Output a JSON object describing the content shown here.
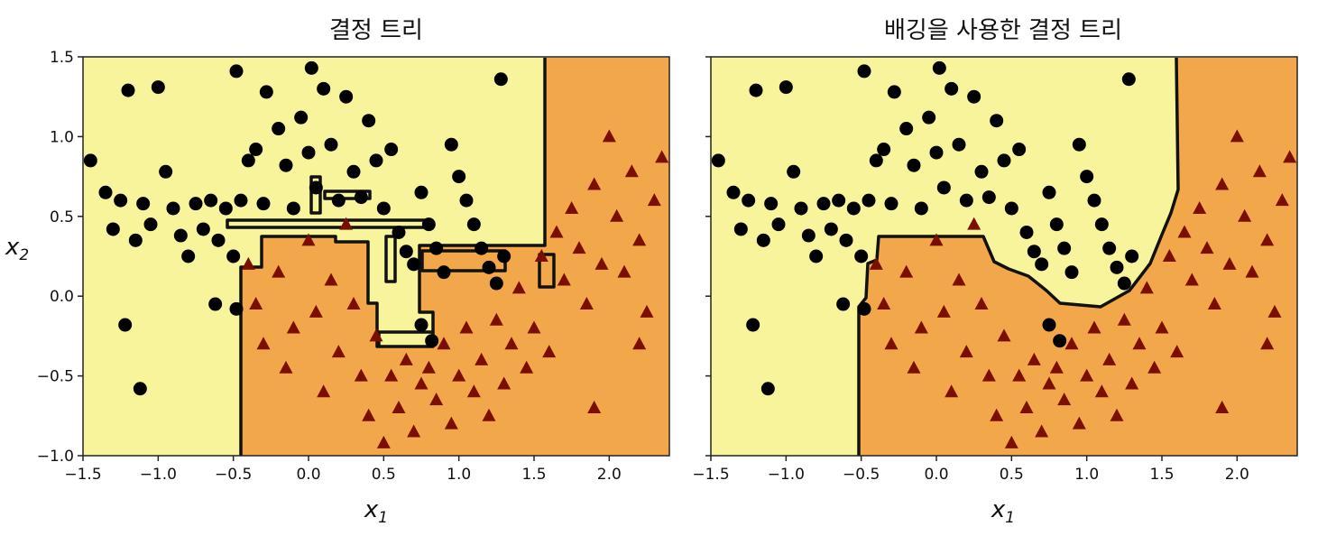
{
  "colors": {
    "class0_region": "#f7f49c",
    "class1_region": "#f1a74a",
    "class0_marker": "#000000",
    "class1_marker": "#7a0f00",
    "boundary": "#111111"
  },
  "chart_data": [
    {
      "type": "scatter",
      "title": "결정 트리",
      "xlabel": "x1",
      "ylabel": "x2",
      "xlim": [
        -1.5,
        2.4
      ],
      "ylim": [
        -1.0,
        1.5
      ],
      "x_ticks": [
        "−1.5",
        "−1.0",
        "−0.5",
        "0.0",
        "0.5",
        "1.0",
        "1.5",
        "2.0"
      ],
      "y_ticks": [
        "−1.0",
        "−0.5",
        "0.0",
        "0.5",
        "1.0",
        "1.5"
      ],
      "series": [
        {
          "marker": "circle",
          "color": "#000000",
          "points": [
            [
              -1.45,
              0.85
            ],
            [
              -1.35,
              0.65
            ],
            [
              -1.3,
              0.42
            ],
            [
              -1.25,
              0.6
            ],
            [
              -1.2,
              1.29
            ],
            [
              -1.15,
              0.35
            ],
            [
              -1.1,
              0.58
            ],
            [
              -1.05,
              0.45
            ],
            [
              -1.0,
              1.31
            ],
            [
              -0.95,
              0.78
            ],
            [
              -0.9,
              0.55
            ],
            [
              -0.85,
              0.38
            ],
            [
              -0.8,
              0.25
            ],
            [
              -0.75,
              0.58
            ],
            [
              -0.7,
              0.42
            ],
            [
              -0.65,
              0.6
            ],
            [
              -0.6,
              0.35
            ],
            [
              -0.55,
              0.55
            ],
            [
              -0.5,
              0.25
            ],
            [
              -0.48,
              1.41
            ],
            [
              -0.45,
              0.6
            ],
            [
              -0.4,
              0.85
            ],
            [
              -0.35,
              0.92
            ],
            [
              -0.3,
              0.58
            ],
            [
              -0.28,
              1.28
            ],
            [
              -0.2,
              1.05
            ],
            [
              -0.15,
              0.82
            ],
            [
              -0.1,
              0.55
            ],
            [
              -0.05,
              1.12
            ],
            [
              0.0,
              0.9
            ],
            [
              0.02,
              1.43
            ],
            [
              0.05,
              0.68
            ],
            [
              0.1,
              1.3
            ],
            [
              0.15,
              0.95
            ],
            [
              0.2,
              0.6
            ],
            [
              0.25,
              1.25
            ],
            [
              0.3,
              0.78
            ],
            [
              0.35,
              0.62
            ],
            [
              0.4,
              1.1
            ],
            [
              0.45,
              0.85
            ],
            [
              0.5,
              0.55
            ],
            [
              0.55,
              0.92
            ],
            [
              0.6,
              0.4
            ],
            [
              0.65,
              0.28
            ],
            [
              0.7,
              0.2
            ],
            [
              0.75,
              0.65
            ],
            [
              0.8,
              0.45
            ],
            [
              0.85,
              0.3
            ],
            [
              0.9,
              0.15
            ],
            [
              0.95,
              0.95
            ],
            [
              1.0,
              0.75
            ],
            [
              1.05,
              0.6
            ],
            [
              1.1,
              0.45
            ],
            [
              1.15,
              0.3
            ],
            [
              1.2,
              0.18
            ],
            [
              1.25,
              0.08
            ],
            [
              1.28,
              1.36
            ],
            [
              1.3,
              0.25
            ],
            [
              -1.12,
              -0.58
            ],
            [
              -0.62,
              -0.05
            ],
            [
              -0.48,
              -0.08
            ],
            [
              -1.22,
              -0.18
            ],
            [
              0.75,
              -0.18
            ],
            [
              0.82,
              -0.28
            ]
          ]
        },
        {
          "marker": "triangle",
          "color": "#7a0f00",
          "points": [
            [
              -0.4,
              0.2
            ],
            [
              -0.35,
              -0.05
            ],
            [
              -0.3,
              -0.3
            ],
            [
              -0.2,
              0.15
            ],
            [
              -0.15,
              -0.45
            ],
            [
              -0.1,
              -0.2
            ],
            [
              0.0,
              0.35
            ],
            [
              0.05,
              -0.1
            ],
            [
              0.1,
              -0.6
            ],
            [
              0.15,
              0.1
            ],
            [
              0.2,
              -0.35
            ],
            [
              0.25,
              0.45
            ],
            [
              0.3,
              -0.05
            ],
            [
              0.35,
              -0.5
            ],
            [
              0.4,
              -0.75
            ],
            [
              0.45,
              -0.25
            ],
            [
              0.5,
              -0.92
            ],
            [
              0.55,
              -0.5
            ],
            [
              0.6,
              -0.7
            ],
            [
              0.65,
              -0.4
            ],
            [
              0.7,
              -0.85
            ],
            [
              0.75,
              -0.55
            ],
            [
              0.8,
              -0.45
            ],
            [
              0.85,
              -0.65
            ],
            [
              0.9,
              -0.3
            ],
            [
              0.95,
              -0.8
            ],
            [
              1.0,
              -0.5
            ],
            [
              1.05,
              -0.2
            ],
            [
              1.1,
              -0.6
            ],
            [
              1.15,
              -0.4
            ],
            [
              1.2,
              -0.75
            ],
            [
              1.25,
              -0.15
            ],
            [
              1.3,
              -0.55
            ],
            [
              1.35,
              -0.3
            ],
            [
              1.4,
              0.05
            ],
            [
              1.45,
              -0.45
            ],
            [
              1.5,
              -0.2
            ],
            [
              1.55,
              0.25
            ],
            [
              1.6,
              -0.35
            ],
            [
              1.65,
              0.4
            ],
            [
              1.7,
              0.1
            ],
            [
              1.75,
              0.55
            ],
            [
              1.8,
              0.3
            ],
            [
              1.85,
              -0.05
            ],
            [
              1.9,
              0.7
            ],
            [
              1.95,
              0.2
            ],
            [
              2.0,
              1.0
            ],
            [
              2.05,
              0.5
            ],
            [
              2.1,
              0.15
            ],
            [
              2.15,
              0.78
            ],
            [
              2.2,
              0.35
            ],
            [
              2.25,
              -0.1
            ],
            [
              2.3,
              0.6
            ],
            [
              2.35,
              0.87
            ],
            [
              2.2,
              -0.3
            ],
            [
              1.9,
              -0.7
            ]
          ]
        }
      ]
    },
    {
      "type": "scatter",
      "title": "배깅을 사용한 결정 트리",
      "xlabel": "x1",
      "ylabel": "",
      "xlim": [
        -1.5,
        2.4
      ],
      "ylim": [
        -1.0,
        1.5
      ],
      "x_ticks": [
        "−1.5",
        "−1.0",
        "−0.5",
        "0.0",
        "0.5",
        "1.0",
        "1.5",
        "2.0"
      ],
      "y_ticks": [],
      "series": [
        {
          "marker": "circle",
          "color": "#000000",
          "points": [
            [
              -1.45,
              0.85
            ],
            [
              -1.35,
              0.65
            ],
            [
              -1.3,
              0.42
            ],
            [
              -1.25,
              0.6
            ],
            [
              -1.2,
              1.29
            ],
            [
              -1.15,
              0.35
            ],
            [
              -1.1,
              0.58
            ],
            [
              -1.05,
              0.45
            ],
            [
              -1.0,
              1.31
            ],
            [
              -0.95,
              0.78
            ],
            [
              -0.9,
              0.55
            ],
            [
              -0.85,
              0.38
            ],
            [
              -0.8,
              0.25
            ],
            [
              -0.75,
              0.58
            ],
            [
              -0.7,
              0.42
            ],
            [
              -0.65,
              0.6
            ],
            [
              -0.6,
              0.35
            ],
            [
              -0.55,
              0.55
            ],
            [
              -0.5,
              0.25
            ],
            [
              -0.48,
              1.41
            ],
            [
              -0.45,
              0.6
            ],
            [
              -0.4,
              0.85
            ],
            [
              -0.35,
              0.92
            ],
            [
              -0.3,
              0.58
            ],
            [
              -0.28,
              1.28
            ],
            [
              -0.2,
              1.05
            ],
            [
              -0.15,
              0.82
            ],
            [
              -0.1,
              0.55
            ],
            [
              -0.05,
              1.12
            ],
            [
              0.0,
              0.9
            ],
            [
              0.02,
              1.43
            ],
            [
              0.05,
              0.68
            ],
            [
              0.1,
              1.3
            ],
            [
              0.15,
              0.95
            ],
            [
              0.2,
              0.6
            ],
            [
              0.25,
              1.25
            ],
            [
              0.3,
              0.78
            ],
            [
              0.35,
              0.62
            ],
            [
              0.4,
              1.1
            ],
            [
              0.45,
              0.85
            ],
            [
              0.5,
              0.55
            ],
            [
              0.55,
              0.92
            ],
            [
              0.6,
              0.4
            ],
            [
              0.65,
              0.28
            ],
            [
              0.7,
              0.2
            ],
            [
              0.75,
              0.65
            ],
            [
              0.8,
              0.45
            ],
            [
              0.85,
              0.3
            ],
            [
              0.9,
              0.15
            ],
            [
              0.95,
              0.95
            ],
            [
              1.0,
              0.75
            ],
            [
              1.05,
              0.6
            ],
            [
              1.1,
              0.45
            ],
            [
              1.15,
              0.3
            ],
            [
              1.2,
              0.18
            ],
            [
              1.25,
              0.08
            ],
            [
              1.28,
              1.36
            ],
            [
              1.3,
              0.25
            ],
            [
              -1.12,
              -0.58
            ],
            [
              -0.62,
              -0.05
            ],
            [
              -0.48,
              -0.08
            ],
            [
              -1.22,
              -0.18
            ],
            [
              0.75,
              -0.18
            ],
            [
              0.82,
              -0.28
            ]
          ]
        },
        {
          "marker": "triangle",
          "color": "#7a0f00",
          "points": [
            [
              -0.4,
              0.2
            ],
            [
              -0.35,
              -0.05
            ],
            [
              -0.3,
              -0.3
            ],
            [
              -0.2,
              0.15
            ],
            [
              -0.15,
              -0.45
            ],
            [
              -0.1,
              -0.2
            ],
            [
              0.0,
              0.35
            ],
            [
              0.05,
              -0.1
            ],
            [
              0.1,
              -0.6
            ],
            [
              0.15,
              0.1
            ],
            [
              0.2,
              -0.35
            ],
            [
              0.25,
              0.45
            ],
            [
              0.3,
              -0.05
            ],
            [
              0.35,
              -0.5
            ],
            [
              0.4,
              -0.75
            ],
            [
              0.45,
              -0.25
            ],
            [
              0.5,
              -0.92
            ],
            [
              0.55,
              -0.5
            ],
            [
              0.6,
              -0.7
            ],
            [
              0.65,
              -0.4
            ],
            [
              0.7,
              -0.85
            ],
            [
              0.75,
              -0.55
            ],
            [
              0.8,
              -0.45
            ],
            [
              0.85,
              -0.65
            ],
            [
              0.9,
              -0.3
            ],
            [
              0.95,
              -0.8
            ],
            [
              1.0,
              -0.5
            ],
            [
              1.05,
              -0.2
            ],
            [
              1.1,
              -0.6
            ],
            [
              1.15,
              -0.4
            ],
            [
              1.2,
              -0.75
            ],
            [
              1.25,
              -0.15
            ],
            [
              1.3,
              -0.55
            ],
            [
              1.35,
              -0.3
            ],
            [
              1.4,
              0.05
            ],
            [
              1.45,
              -0.45
            ],
            [
              1.5,
              -0.2
            ],
            [
              1.55,
              0.25
            ],
            [
              1.6,
              -0.35
            ],
            [
              1.65,
              0.4
            ],
            [
              1.7,
              0.1
            ],
            [
              1.75,
              0.55
            ],
            [
              1.8,
              0.3
            ],
            [
              1.85,
              -0.05
            ],
            [
              1.9,
              0.7
            ],
            [
              1.95,
              0.2
            ],
            [
              2.0,
              1.0
            ],
            [
              2.05,
              0.5
            ],
            [
              2.1,
              0.15
            ],
            [
              2.15,
              0.78
            ],
            [
              2.2,
              0.35
            ],
            [
              2.25,
              -0.1
            ],
            [
              2.3,
              0.6
            ],
            [
              2.35,
              0.87
            ],
            [
              2.2,
              -0.3
            ],
            [
              1.9,
              -0.7
            ]
          ]
        }
      ]
    }
  ]
}
